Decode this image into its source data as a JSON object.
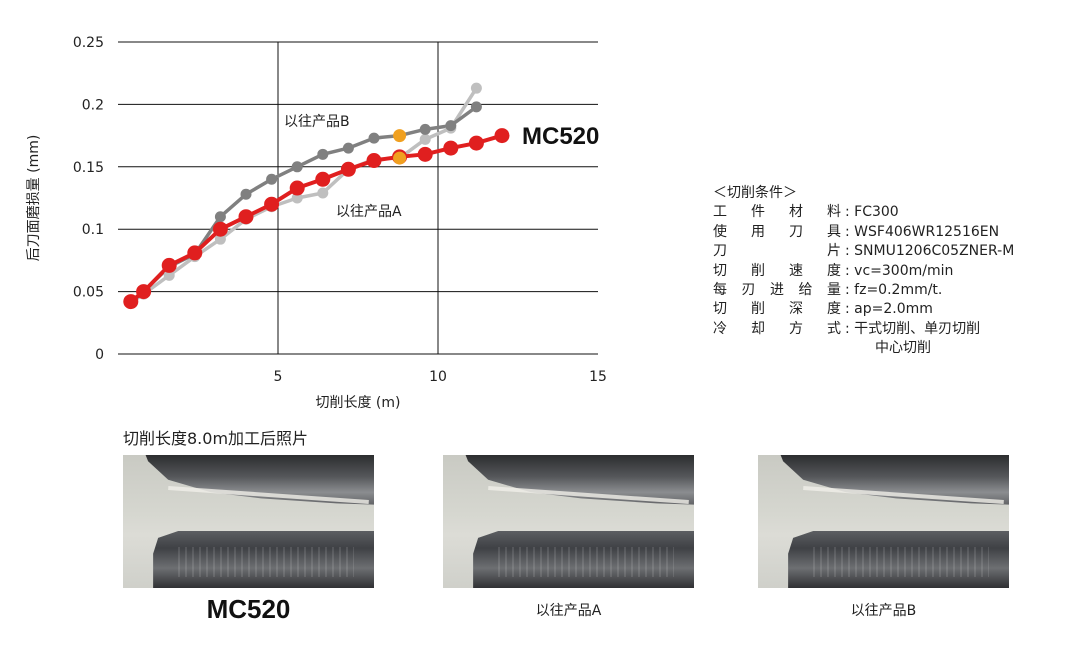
{
  "chart_data": {
    "type": "line",
    "title": "",
    "xlabel": "切削长度 (m)",
    "ylabel": "后刀面磨损量 (mm)",
    "xlim": [
      0,
      15
    ],
    "ylim": [
      0,
      0.25
    ],
    "xticks": [
      5,
      10,
      15
    ],
    "yticks": [
      0,
      0.05,
      0.1,
      0.15,
      0.2,
      0.25
    ],
    "ytick_labels": [
      "0",
      "0.05",
      "0.1",
      "0.15",
      "0.2",
      "0.25"
    ],
    "grid": true,
    "series": [
      {
        "name": "以往产品B",
        "color": "#808080",
        "x": [
          0.4,
          0.8,
          1.6,
          2.4,
          3.2,
          4.0,
          4.8,
          5.6,
          6.4,
          7.2,
          8.0,
          8.8,
          9.6,
          10.4,
          11.2
        ],
        "y": [
          0.041,
          0.05,
          0.07,
          0.08,
          0.11,
          0.128,
          0.14,
          0.15,
          0.16,
          0.165,
          0.173,
          0.175,
          0.18,
          0.183,
          0.198
        ]
      },
      {
        "name": "以往产品A",
        "color": "#bfbfbf",
        "x": [
          0.4,
          0.8,
          1.6,
          2.4,
          3.2,
          4.0,
          4.8,
          5.6,
          6.4,
          7.2,
          8.0,
          8.8,
          9.6,
          10.4,
          11.2
        ],
        "y": [
          0.041,
          0.048,
          0.063,
          0.078,
          0.092,
          0.108,
          0.118,
          0.125,
          0.129,
          0.148,
          0.156,
          0.157,
          0.172,
          0.181,
          0.213
        ]
      },
      {
        "name": "MC520",
        "color": "#e01f1f",
        "x": [
          0.4,
          0.8,
          1.6,
          2.4,
          3.2,
          4.0,
          4.8,
          5.6,
          6.4,
          7.2,
          8.0,
          8.8,
          9.6,
          10.4,
          11.2,
          12.0
        ],
        "y": [
          0.042,
          0.05,
          0.071,
          0.081,
          0.1,
          0.11,
          0.12,
          0.133,
          0.14,
          0.148,
          0.155,
          0.158,
          0.16,
          0.165,
          0.169,
          0.175
        ]
      }
    ],
    "highlight_points": [
      {
        "x": 8.8,
        "y": 0.175,
        "color": "#f0a020"
      },
      {
        "x": 8.8,
        "y": 0.157,
        "color": "#f0a020"
      }
    ]
  },
  "conditions": {
    "title": "＜切削条件＞",
    "rows": [
      {
        "key": [
          "工",
          "件",
          "材",
          "料"
        ],
        "value": ": FC300"
      },
      {
        "key": [
          "使",
          "用",
          "刀",
          "具"
        ],
        "value": ": WSF406WR12516EN"
      },
      {
        "key": [
          "刀",
          "片"
        ],
        "value": ": SNMU1206C05ZNER-M"
      },
      {
        "key": [
          "切",
          "削",
          "速",
          "度"
        ],
        "value": ": vc=300m/min"
      },
      {
        "key": [
          "每",
          "刃",
          "进",
          "给",
          "量"
        ],
        "value": ": fz=0.2mm/t."
      },
      {
        "key": [
          "切",
          "削",
          "深",
          "度"
        ],
        "value": ": ap=2.0mm"
      },
      {
        "key": [
          "冷",
          "却",
          "方",
          "式"
        ],
        "value": ": 干式切削、单刃切削"
      }
    ],
    "continuation": "中心切削"
  },
  "photos": {
    "caption": "切削长度8.0m加工后照片",
    "items": [
      {
        "label": "MC520"
      },
      {
        "label": "以往产品A"
      },
      {
        "label": "以往产品B"
      }
    ]
  }
}
